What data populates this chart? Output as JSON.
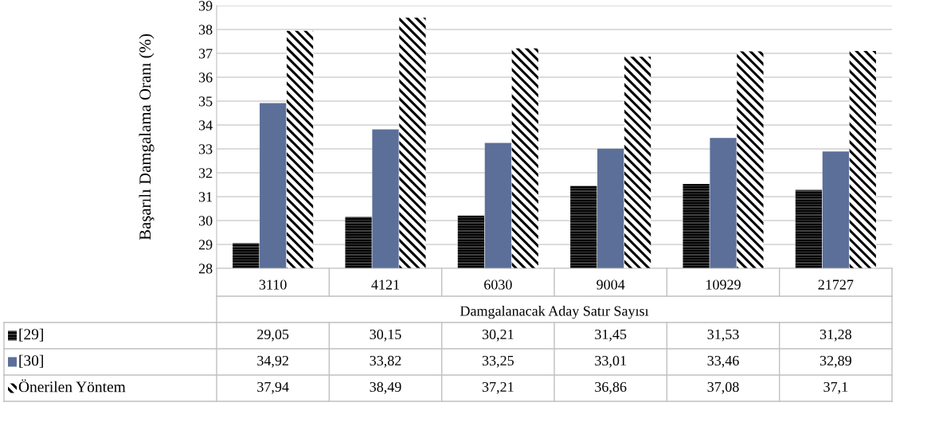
{
  "chart_data": {
    "type": "bar",
    "ylabel": "Başarılı Damgalama Oranı (%)",
    "xlabel": "Damgalanacak Aday Satır Sayısı",
    "categories": [
      "3110",
      "4121",
      "6030",
      "9004",
      "10929",
      "21727"
    ],
    "series": [
      {
        "name": "[29]",
        "color": "#000000",
        "values": [
          29.05,
          30.15,
          30.21,
          31.45,
          31.53,
          31.28
        ],
        "value_labels": [
          "29,05",
          "30,15",
          "30,21",
          "31,45",
          "31,53",
          "31,28"
        ]
      },
      {
        "name": "[30]",
        "color": "#5b6f99",
        "values": [
          34.92,
          33.82,
          33.25,
          33.01,
          33.46,
          32.89
        ],
        "value_labels": [
          "34,92",
          "33,82",
          "33,25",
          "33,01",
          "33,46",
          "32,89"
        ]
      },
      {
        "name": "Önerilen Yöntem",
        "color": "#000000",
        "values": [
          37.94,
          38.49,
          37.21,
          36.86,
          37.08,
          37.1
        ],
        "value_labels": [
          "37,94",
          "38,49",
          "37,21",
          "36,86",
          "37,08",
          "37,1"
        ]
      }
    ],
    "ylim": [
      28,
      39
    ],
    "yticks": [
      28,
      29,
      30,
      31,
      32,
      33,
      34,
      35,
      36,
      37,
      38,
      39
    ],
    "grid": "y",
    "legend": "bottom"
  }
}
